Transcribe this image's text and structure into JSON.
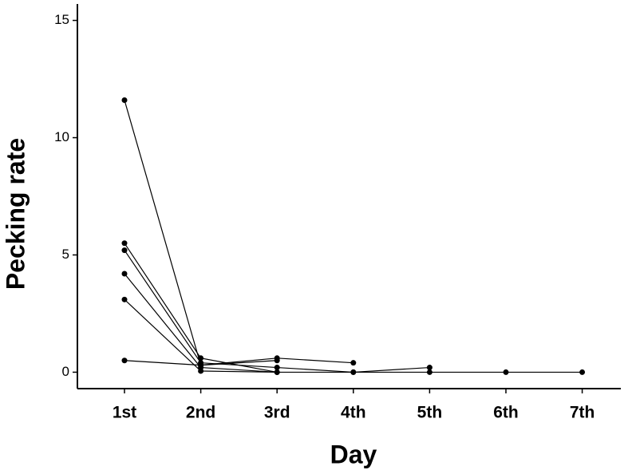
{
  "chart_data": {
    "type": "line",
    "x_label": "Day",
    "y_label": "Pecking rate",
    "categories": [
      "1st",
      "2nd",
      "3rd",
      "4th",
      "5th",
      "6th",
      "7th"
    ],
    "series": [
      {
        "color": "#000000",
        "values": [
          11.6,
          0.3,
          0.6,
          0.4,
          null,
          null,
          null
        ]
      },
      {
        "color": "#000000",
        "values": [
          5.5,
          0.6,
          0.0,
          0.0,
          0.2,
          null,
          null
        ]
      },
      {
        "color": "#000000",
        "values": [
          5.2,
          0.4,
          0.2,
          0.0,
          0.0,
          0.0,
          0.0
        ]
      },
      {
        "color": "#000000",
        "values": [
          4.2,
          0.2,
          0.0,
          null,
          null,
          null,
          null
        ]
      },
      {
        "color": "#000000",
        "values": [
          3.1,
          0.05,
          0.0,
          null,
          null,
          null,
          null
        ]
      },
      {
        "color": "#000000",
        "values": [
          0.5,
          0.3,
          0.5,
          null,
          null,
          null,
          null
        ]
      }
    ],
    "ylim": [
      -0.7,
      15.7
    ],
    "yticks": [
      0,
      5,
      10,
      15
    ],
    "grid": false
  }
}
